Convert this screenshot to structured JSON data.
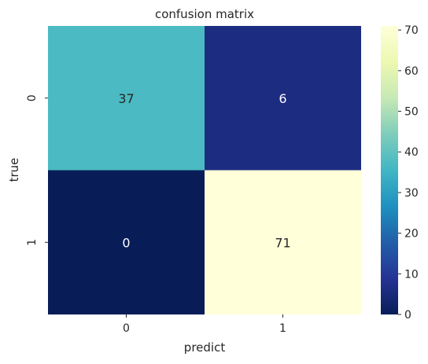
{
  "chart_data": {
    "type": "heatmap",
    "title": "confusion matrix",
    "xlabel": "predict",
    "ylabel": "true",
    "x_categories": [
      "0",
      "1"
    ],
    "y_categories": [
      "0",
      "1"
    ],
    "matrix": [
      [
        37,
        6
      ],
      [
        0,
        71
      ]
    ],
    "colormap": "YlGnBu",
    "colorbar": {
      "range": [
        0,
        71
      ],
      "ticks": [
        "0",
        "10",
        "20",
        "30",
        "40",
        "50",
        "60",
        "70"
      ]
    }
  }
}
